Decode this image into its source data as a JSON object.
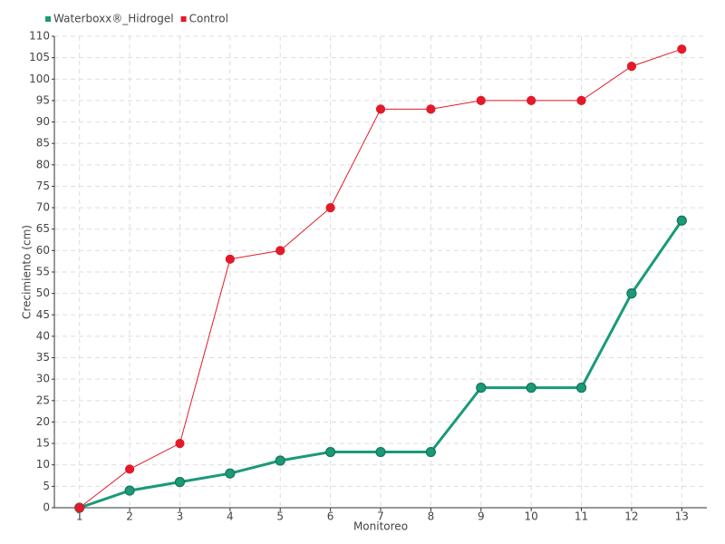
{
  "chart_data": {
    "type": "line",
    "x_label": "Monitoreo",
    "y_label": "Crecimiento (cm)",
    "categories": [
      "1",
      "2",
      "3",
      "4",
      "5",
      "6",
      "7",
      "8",
      "9",
      "10",
      "11",
      "12",
      "13"
    ],
    "series": [
      {
        "name": "Waterboxx®_Hidrogel",
        "color": "#1a9a78",
        "values": [
          0,
          4,
          6,
          8,
          11,
          13,
          13,
          13,
          28,
          28,
          28,
          50,
          67
        ]
      },
      {
        "name": "Control",
        "color": "#e31a2a",
        "values": [
          0,
          9,
          15,
          58,
          60,
          70,
          93,
          93,
          95,
          95,
          95,
          103,
          107
        ]
      }
    ],
    "ylim": [
      0,
      110
    ],
    "yticks": [
      0,
      5,
      10,
      15,
      20,
      25,
      30,
      35,
      40,
      45,
      50,
      55,
      60,
      65,
      70,
      75,
      80,
      85,
      90,
      95,
      100,
      105,
      110
    ],
    "grid": true,
    "legend": "top-left"
  }
}
